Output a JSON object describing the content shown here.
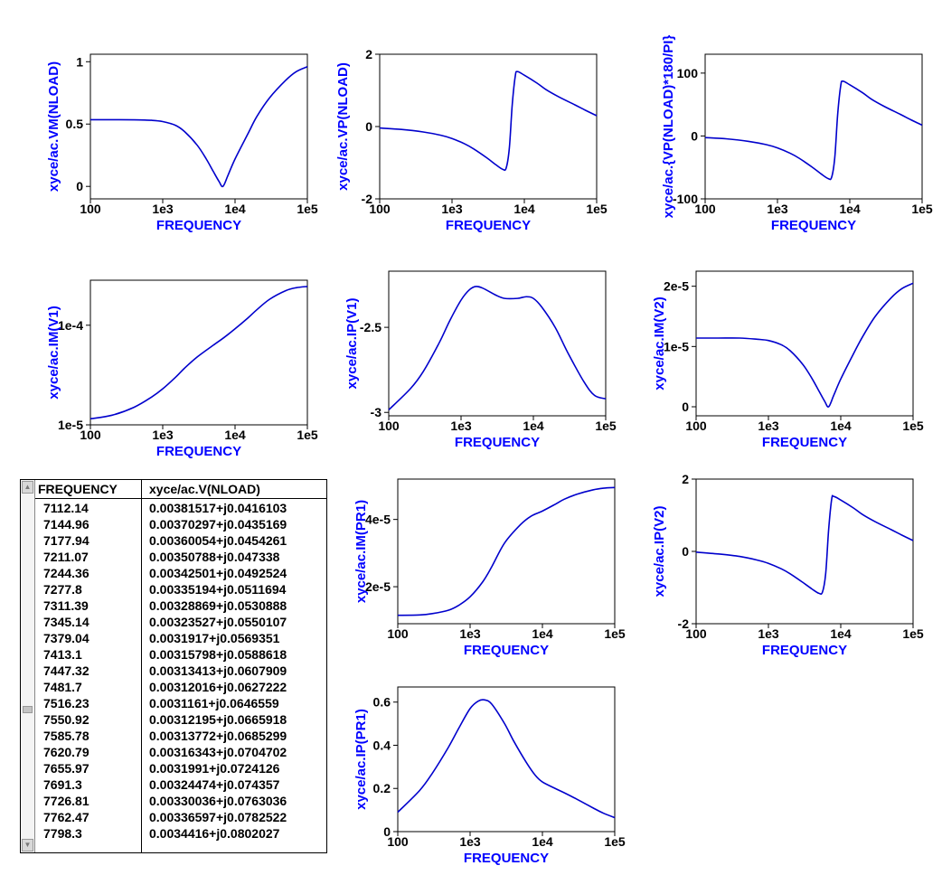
{
  "colors": {
    "trace": "#0000cc",
    "axis_title": "#0000ff",
    "frame": "#000000"
  },
  "table": {
    "headers": [
      "FREQUENCY",
      "xyce/ac.V(NLOAD)"
    ],
    "rows": [
      [
        "7112.14",
        "0.00381517+j0.0416103"
      ],
      [
        "7144.96",
        "0.00370297+j0.0435169"
      ],
      [
        "7177.94",
        "0.00360054+j0.0454261"
      ],
      [
        "7211.07",
        "0.00350788+j0.047338"
      ],
      [
        "7244.36",
        "0.00342501+j0.0492524"
      ],
      [
        "7277.8",
        "0.00335194+j0.0511694"
      ],
      [
        "7311.39",
        "0.00328869+j0.0530888"
      ],
      [
        "7345.14",
        "0.00323527+j0.0550107"
      ],
      [
        "7379.04",
        "0.0031917+j0.0569351"
      ],
      [
        "7413.1",
        "0.00315798+j0.0588618"
      ],
      [
        "7447.32",
        "0.00313413+j0.0607909"
      ],
      [
        "7481.7",
        "0.00312016+j0.0627222"
      ],
      [
        "7516.23",
        "0.0031161+j0.0646559"
      ],
      [
        "7550.92",
        "0.00312195+j0.0665918"
      ],
      [
        "7585.78",
        "0.00313772+j0.0685299"
      ],
      [
        "7620.79",
        "0.00316343+j0.0704702"
      ],
      [
        "7655.97",
        "0.0031991+j0.0724126"
      ],
      [
        "7691.3",
        "0.00324474+j0.074357"
      ],
      [
        "7726.81",
        "0.00330036+j0.0763036"
      ],
      [
        "7762.47",
        "0.00336597+j0.0782522"
      ],
      [
        "7798.3",
        "0.0034416+j0.0802027"
      ]
    ]
  },
  "chart_data": [
    {
      "type": "line",
      "xscale": "log",
      "xlim": [
        100,
        100000
      ],
      "xticks": [
        "100",
        "1e3",
        "1e4",
        "1e5"
      ],
      "xlabel": "FREQUENCY",
      "ylabel": "xyce/ac.VM(NLOAD)",
      "ylim": [
        -0.1,
        1.06
      ],
      "yticks": [
        [
          0,
          "0"
        ],
        [
          0.5,
          "0.5"
        ],
        [
          1,
          "1"
        ]
      ],
      "x": [
        100,
        200,
        400,
        700,
        1000,
        1500,
        2000,
        3000,
        4000,
        5000,
        6000,
        6800,
        8000,
        10000,
        15000,
        20000,
        30000,
        50000,
        70000,
        100000
      ],
      "y": [
        0.535,
        0.535,
        0.534,
        0.53,
        0.52,
        0.49,
        0.44,
        0.33,
        0.22,
        0.12,
        0.04,
        0.0,
        0.09,
        0.22,
        0.42,
        0.56,
        0.71,
        0.85,
        0.92,
        0.96
      ]
    },
    {
      "type": "line",
      "xscale": "log",
      "xlim": [
        100,
        100000
      ],
      "xticks": [
        "100",
        "1e3",
        "1e4",
        "1e5"
      ],
      "xlabel": "FREQUENCY",
      "ylabel": "xyce/ac.VP(NLOAD)",
      "ylim": [
        -2,
        2
      ],
      "yticks": [
        [
          -2,
          "-2"
        ],
        [
          0,
          "0"
        ],
        [
          2,
          "2"
        ]
      ],
      "x": [
        100,
        200,
        400,
        700,
        1000,
        1500,
        2000,
        3000,
        4000,
        5000,
        5600,
        6200,
        6800,
        7500,
        8000,
        10000,
        15000,
        20000,
        30000,
        50000,
        70000,
        100000
      ],
      "y": [
        -0.04,
        -0.08,
        -0.15,
        -0.24,
        -0.33,
        -0.48,
        -0.62,
        -0.86,
        -1.05,
        -1.18,
        -1.15,
        -0.6,
        0.6,
        1.4,
        1.52,
        1.42,
        1.2,
        1.02,
        0.82,
        0.6,
        0.45,
        0.3
      ]
    },
    {
      "type": "line",
      "xscale": "log",
      "xlim": [
        100,
        100000
      ],
      "xticks": [
        "100",
        "1e3",
        "1e4",
        "1e5"
      ],
      "xlabel": "FREQUENCY",
      "ylabel": "xyce/ac.{VP(NLOAD)*180/PI}",
      "ylim": [
        -100,
        130
      ],
      "yticks": [
        [
          -100,
          "-100"
        ],
        [
          0,
          "0"
        ],
        [
          100,
          "100"
        ]
      ],
      "x": [
        100,
        200,
        400,
        700,
        1000,
        1500,
        2000,
        3000,
        4000,
        5000,
        5600,
        6200,
        6800,
        7500,
        8000,
        10000,
        15000,
        20000,
        30000,
        50000,
        70000,
        100000
      ],
      "y": [
        -2.5,
        -4.6,
        -8.6,
        -13.8,
        -19,
        -27.5,
        -35.5,
        -49.3,
        -60.2,
        -67.6,
        -65.9,
        -34.4,
        34.4,
        80.2,
        87.1,
        81.4,
        68.8,
        58.4,
        47,
        34.4,
        25.8,
        17.2
      ]
    },
    {
      "type": "line",
      "xscale": "log",
      "xlim": [
        100,
        100000
      ],
      "yscale": "log",
      "xticks": [
        "100",
        "1e3",
        "1e4",
        "1e5"
      ],
      "xlabel": "FREQUENCY",
      "ylabel": "xyce/ac.IM(V1)",
      "ylim": [
        1e-05,
        0.000283
      ],
      "yticks": [
        [
          1e-05,
          "1e-5"
        ],
        [
          0.0001,
          "1e-4"
        ]
      ],
      "x": [
        100,
        200,
        400,
        700,
        1000,
        1500,
        2000,
        3000,
        5000,
        7000,
        10000,
        15000,
        20000,
        30000,
        50000,
        70000,
        100000
      ],
      "y": [
        1.15e-05,
        1.25e-05,
        1.5e-05,
        1.9e-05,
        2.3e-05,
        3e-05,
        3.7e-05,
        4.8e-05,
        6.3e-05,
        7.5e-05,
        9.2e-05,
        0.000118,
        0.000143,
        0.000182,
        0.000222,
        0.000238,
        0.000245
      ]
    },
    {
      "type": "line",
      "xscale": "log",
      "xlim": [
        100,
        100000
      ],
      "xticks": [
        "100",
        "1e3",
        "1e4",
        "1e5"
      ],
      "xlabel": "FREQUENCY",
      "ylabel": "xyce/ac.IP(V1)",
      "ylim": [
        -3.02,
        -2.17
      ],
      "yticks": [
        [
          -3,
          "-3"
        ],
        [
          -2.5,
          "-2.5"
        ]
      ],
      "x": [
        100,
        200,
        300,
        500,
        700,
        1000,
        1300,
        1600,
        2000,
        3000,
        4000,
        6000,
        8000,
        10000,
        13000,
        20000,
        30000,
        50000,
        70000,
        100000
      ],
      "y": [
        -2.985,
        -2.86,
        -2.76,
        -2.59,
        -2.46,
        -2.34,
        -2.28,
        -2.26,
        -2.27,
        -2.31,
        -2.33,
        -2.33,
        -2.32,
        -2.33,
        -2.38,
        -2.5,
        -2.65,
        -2.82,
        -2.9,
        -2.92
      ]
    },
    {
      "type": "line",
      "xscale": "log",
      "xlim": [
        100,
        100000
      ],
      "xticks": [
        "100",
        "1e3",
        "1e4",
        "1e5"
      ],
      "xlabel": "FREQUENCY",
      "ylabel": "xyce/ac.IM(V2)",
      "ylim": [
        -1.5e-06,
        2.25e-05
      ],
      "yticks": [
        [
          0,
          "0"
        ],
        [
          1e-05,
          "1e-5"
        ],
        [
          2e-05,
          "2e-5"
        ]
      ],
      "x": [
        100,
        200,
        400,
        700,
        1000,
        1500,
        2000,
        3000,
        4000,
        5000,
        6000,
        6800,
        8000,
        10000,
        15000,
        20000,
        30000,
        50000,
        70000,
        100000
      ],
      "y": [
        1.14e-05,
        1.14e-05,
        1.14e-05,
        1.12e-05,
        1.1e-05,
        1.03e-05,
        9.3e-06,
        7e-06,
        4.7e-06,
        2.6e-06,
        9e-07,
        0.0,
        1.9e-06,
        4.6e-06,
        8.8e-06,
        1.16e-05,
        1.5e-05,
        1.81e-05,
        1.96e-05,
        2.05e-05
      ]
    },
    {
      "type": "line",
      "xscale": "log",
      "xlim": [
        100,
        100000
      ],
      "xticks": [
        "100",
        "1e3",
        "1e4",
        "1e5"
      ],
      "xlabel": "FREQUENCY",
      "ylabel": "xyce/ac.IM(PR1)",
      "ylim": [
        9e-06,
        5.2e-05
      ],
      "yticks": [
        [
          2e-05,
          "2e-5"
        ],
        [
          4e-05,
          "4e-5"
        ]
      ],
      "x": [
        100,
        200,
        300,
        500,
        700,
        1000,
        1500,
        2000,
        3000,
        5000,
        7000,
        10000,
        15000,
        20000,
        30000,
        50000,
        70000,
        100000
      ],
      "y": [
        1.15e-05,
        1.16e-05,
        1.2e-05,
        1.3e-05,
        1.45e-05,
        1.7e-05,
        2.15e-05,
        2.6e-05,
        3.3e-05,
        3.85e-05,
        4.1e-05,
        4.25e-05,
        4.45e-05,
        4.6e-05,
        4.75e-05,
        4.88e-05,
        4.93e-05,
        4.95e-05
      ]
    },
    {
      "type": "line",
      "xscale": "log",
      "xlim": [
        100,
        100000
      ],
      "xticks": [
        "100",
        "1e3",
        "1e4",
        "1e5"
      ],
      "xlabel": "FREQUENCY",
      "ylabel": "xyce/ac.IP(V2)",
      "ylim": [
        -2,
        2
      ],
      "yticks": [
        [
          -2,
          "-2"
        ],
        [
          0,
          "0"
        ],
        [
          2,
          "2"
        ]
      ],
      "x": [
        100,
        200,
        400,
        700,
        1000,
        1500,
        2000,
        3000,
        4000,
        5000,
        5600,
        6200,
        6800,
        7500,
        8000,
        10000,
        15000,
        20000,
        30000,
        50000,
        70000,
        100000
      ],
      "y": [
        -0.02,
        -0.07,
        -0.14,
        -0.24,
        -0.33,
        -0.48,
        -0.62,
        -0.86,
        -1.04,
        -1.16,
        -1.12,
        -0.6,
        0.6,
        1.45,
        1.52,
        1.42,
        1.2,
        1.02,
        0.82,
        0.6,
        0.45,
        0.3
      ]
    },
    {
      "type": "line",
      "xscale": "log",
      "xlim": [
        100,
        100000
      ],
      "xticks": [
        "100",
        "1e3",
        "1e4",
        "1e5"
      ],
      "xlabel": "FREQUENCY",
      "ylabel": "xyce/ac.IP(PR1)",
      "ylim": [
        0,
        0.67
      ],
      "yticks": [
        [
          0,
          "0"
        ],
        [
          0.2,
          "0.2"
        ],
        [
          0.4,
          "0.4"
        ],
        [
          0.6,
          "0.6"
        ]
      ],
      "x": [
        100,
        200,
        300,
        500,
        700,
        1000,
        1300,
        1600,
        2000,
        3000,
        4000,
        6000,
        8000,
        10000,
        15000,
        20000,
        30000,
        50000,
        70000,
        100000
      ],
      "y": [
        0.09,
        0.19,
        0.27,
        0.39,
        0.48,
        0.57,
        0.605,
        0.61,
        0.59,
        0.5,
        0.42,
        0.32,
        0.26,
        0.23,
        0.2,
        0.18,
        0.15,
        0.11,
        0.085,
        0.065
      ]
    }
  ]
}
